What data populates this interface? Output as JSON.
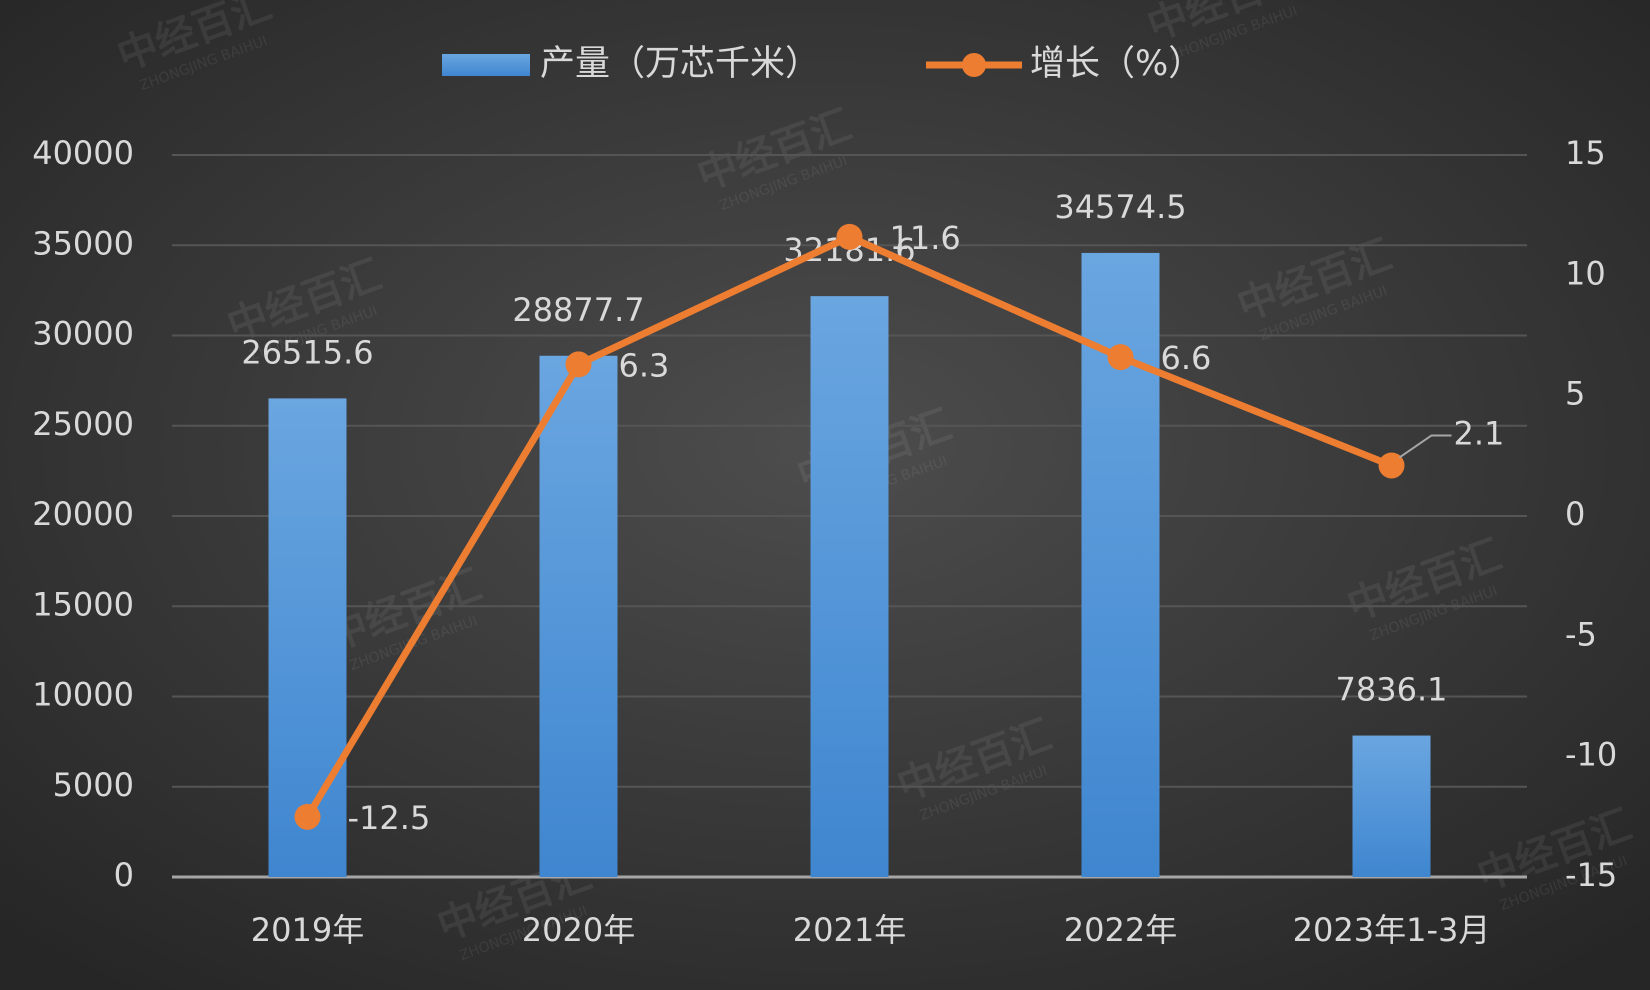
{
  "chart_data": {
    "type": "combo",
    "watermark": "中经百汇",
    "watermark_sub": "ZHONGJING BAIHUI",
    "categories": [
      "2019年",
      "2020年",
      "2021年",
      "2022年",
      "2023年1-3月"
    ],
    "series": [
      {
        "name": "产量（万芯千米）",
        "type": "bar",
        "color": "#5b9bd5",
        "values": [
          26515.6,
          28877.7,
          32181.6,
          34574.5,
          7836.1
        ]
      },
      {
        "name": "增长（%）",
        "type": "line",
        "axis": "y2",
        "color": "#ed7d31",
        "values": [
          -12.5,
          6.3,
          11.6,
          6.6,
          2.1
        ]
      }
    ],
    "ylim": [
      0,
      40000
    ],
    "yticks": [
      0,
      5000,
      10000,
      15000,
      20000,
      25000,
      30000,
      35000,
      40000
    ],
    "y2lim": [
      -15,
      15
    ],
    "y2ticks": [
      -15,
      -10,
      -5,
      0,
      5,
      10,
      15
    ],
    "grid": true,
    "legend": "top"
  }
}
